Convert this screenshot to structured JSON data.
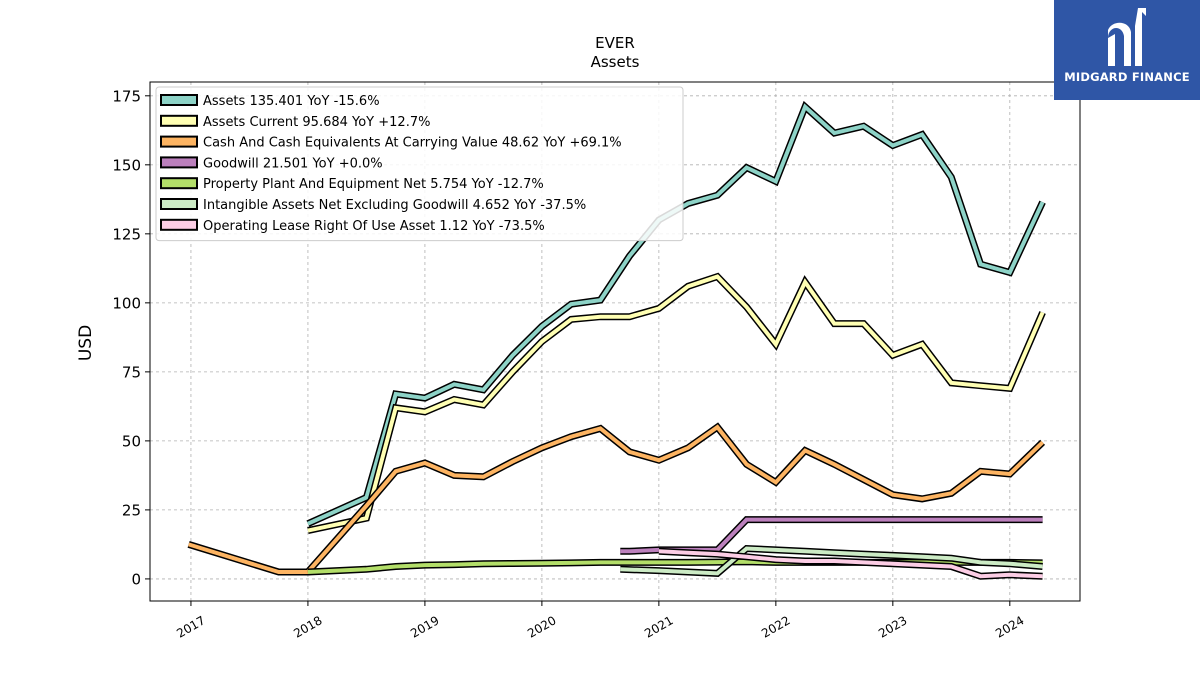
{
  "brand": {
    "name": "MIDGARD FINANCE",
    "color": "#2f56a6",
    "icon": "midgard-logo-icon"
  },
  "chart_data": {
    "type": "line",
    "title": "EVER",
    "subtitle": "Assets",
    "xlabel": "",
    "ylabel": "USD",
    "xlim": [
      2016.65,
      2024.6
    ],
    "ylim": [
      -8,
      180
    ],
    "yticks": [
      0,
      25,
      50,
      75,
      100,
      125,
      150,
      175
    ],
    "xticks": [
      2017,
      2018,
      2019,
      2020,
      2021,
      2022,
      2023,
      2024
    ],
    "grid": true,
    "legend_position": "top-left",
    "series": [
      {
        "name": "Assets  135.401 YoY -15.6%",
        "color": "#8dd3c7",
        "x": [
          2018.0,
          2018.5,
          2018.75,
          2019.0,
          2019.25,
          2019.5,
          2019.75,
          2020.0,
          2020.25,
          2020.5,
          2020.75,
          2021.0,
          2021.25,
          2021.5,
          2021.75,
          2022.0,
          2022.25,
          2022.5,
          2022.75,
          2023.0,
          2023.25,
          2023.5,
          2023.75,
          2024.0,
          2024.28
        ],
        "y": [
          20,
          29.5,
          67,
          65.5,
          70.5,
          68.5,
          81,
          91.5,
          99.5,
          101,
          117,
          130,
          136,
          139,
          149,
          144,
          171,
          161.5,
          164,
          157,
          161,
          145.5,
          114,
          111,
          136.5
        ]
      },
      {
        "name": "Assets Current  95.684 YoY +12.7%",
        "color": "#ffffb3",
        "x": [
          2018.0,
          2018.5,
          2018.75,
          2019.0,
          2019.25,
          2019.5,
          2019.75,
          2020.0,
          2020.25,
          2020.5,
          2020.75,
          2021.0,
          2021.25,
          2021.5,
          2021.75,
          2022.0,
          2022.25,
          2022.5,
          2022.75,
          2023.0,
          2023.25,
          2023.5,
          2023.75,
          2024.0,
          2024.28
        ],
        "y": [
          17.5,
          22,
          62,
          60.5,
          65,
          63,
          75,
          86,
          94,
          95,
          95,
          98,
          106,
          109.5,
          98.5,
          85,
          107.5,
          92.5,
          92.5,
          81,
          85,
          71,
          70,
          69,
          96.5
        ]
      },
      {
        "name": "Cash And Cash Equivalents At Carrying Value  48.62 YoY +69.1%",
        "color": "#fdb462",
        "x": [
          2016.98,
          2017.75,
          2018.0,
          2018.5,
          2018.75,
          2019.0,
          2019.25,
          2019.5,
          2019.75,
          2020.0,
          2020.25,
          2020.5,
          2020.75,
          2021.0,
          2021.25,
          2021.5,
          2021.75,
          2022.0,
          2022.25,
          2022.5,
          2022.75,
          2023.0,
          2023.25,
          2023.5,
          2023.75,
          2024.0,
          2024.28
        ],
        "y": [
          12.5,
          2.5,
          2.5,
          26.5,
          39,
          42,
          37.5,
          37,
          42.5,
          47.5,
          51.5,
          54.5,
          46,
          43,
          47.5,
          55,
          41.5,
          35,
          46.5,
          41.5,
          36,
          30.5,
          29,
          31,
          39,
          38,
          49.5
        ]
      },
      {
        "name": "Goodwill  21.501 YoY +0.0%",
        "color": "#bc80bd",
        "x": [
          2020.67,
          2020.75,
          2021.0,
          2021.25,
          2021.5,
          2021.75,
          2022.0,
          2022.25,
          2022.5,
          2022.75,
          2023.0,
          2023.25,
          2023.5,
          2023.75,
          2024.0,
          2024.28
        ],
        "y": [
          10,
          10,
          10.5,
          10.5,
          10.5,
          21.5,
          21.5,
          21.5,
          21.5,
          21.5,
          21.5,
          21.5,
          21.5,
          21.5,
          21.5,
          21.5
        ]
      },
      {
        "name": "Property Plant And Equipment Net  5.754 YoY -12.7%",
        "color": "#b3de69",
        "x": [
          2018.0,
          2018.5,
          2018.75,
          2019.0,
          2019.25,
          2019.5,
          2019.75,
          2020.0,
          2020.25,
          2020.5,
          2020.75,
          2021.0,
          2021.25,
          2021.5,
          2021.75,
          2022.0,
          2022.25,
          2022.5,
          2022.75,
          2023.0,
          2023.25,
          2023.5,
          2023.75,
          2024.0,
          2024.28
        ],
        "y": [
          2.5,
          3.5,
          4.5,
          5,
          5.2,
          5.5,
          5.6,
          5.7,
          5.8,
          6,
          6,
          6,
          6,
          6.1,
          6.2,
          6,
          6,
          6,
          6,
          6,
          6,
          6,
          6,
          6,
          5.8
        ]
      },
      {
        "name": "Intangible Assets Net Excluding Goodwill  4.652 YoY -37.5%",
        "color": "#ccebc5",
        "x": [
          2020.67,
          2021.0,
          2021.25,
          2021.5,
          2021.75,
          2022.0,
          2022.25,
          2022.5,
          2022.75,
          2023.0,
          2023.25,
          2023.5,
          2023.75,
          2024.0,
          2024.28
        ],
        "y": [
          3.5,
          3,
          2.5,
          2,
          11,
          10.5,
          10,
          9.5,
          9,
          8.5,
          8,
          7.5,
          6,
          5.5,
          4.5
        ]
      },
      {
        "name": "Operating Lease Right Of Use Asset  1.12 YoY -73.5%",
        "color": "#fccde5",
        "x": [
          2021.0,
          2021.25,
          2021.5,
          2021.75,
          2022.0,
          2022.25,
          2022.5,
          2022.75,
          2023.0,
          2023.25,
          2023.5,
          2023.75,
          2024.0,
          2024.28
        ],
        "y": [
          10,
          9.5,
          9,
          8,
          7,
          6.5,
          6.5,
          6,
          5.5,
          5,
          4.5,
          1,
          1.5,
          1
        ]
      }
    ]
  }
}
